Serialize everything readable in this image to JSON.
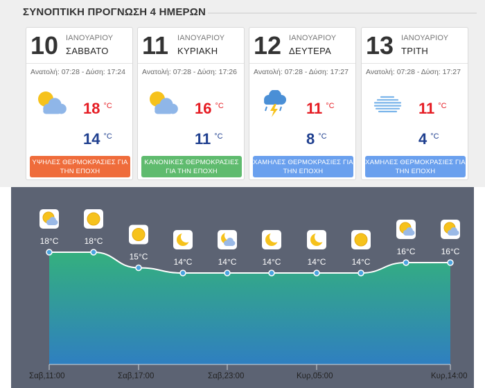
{
  "header": {
    "title": "ΣΥΝΟΠΤΙΚΗ ΠΡΟΓΝΩΣΗ 4 ΗΜΕΡΩΝ"
  },
  "cards": [
    {
      "day": "10",
      "month": "ΙΑΝΟΥΑΡΙΟΥ",
      "weekday": "ΣΑΒΒΑΤΟ",
      "sun": "Ανατολή: 07:28 - Δύση: 17:24",
      "icon": "partly-cloudy-sun-icon",
      "hi": "18",
      "lo": "14",
      "unit": "°C",
      "badge": "ΥΨΗΛΕΣ ΘΕΡΜΟΚΡΑΣΙΕΣ ΓΙΑ ΤΗΝ ΕΠΟΧΗ",
      "badge_color": "#ef6c3b"
    },
    {
      "day": "11",
      "month": "ΙΑΝΟΥΑΡΙΟΥ",
      "weekday": "ΚΥΡΙΑΚΗ",
      "sun": "Ανατολή: 07:28 - Δύση: 17:26",
      "icon": "partly-cloudy-sun-icon",
      "hi": "16",
      "lo": "11",
      "unit": "°C",
      "badge": "ΚΑΝΟΝΙΚΕΣ ΘΕΡΜΟΚΡΑΣΙΕΣ ΓΙΑ ΤΗΝ ΕΠΟΧΗ",
      "badge_color": "#5fbb6e"
    },
    {
      "day": "12",
      "month": "ΙΑΝΟΥΑΡΙΟΥ",
      "weekday": "ΔΕΥΤΕΡΑ",
      "sun": "Ανατολή: 07:28 - Δύση: 17:27",
      "icon": "thunderstorm-icon",
      "hi": "11",
      "lo": "8",
      "unit": "°C",
      "badge": "ΧΑΜΗΛΕΣ ΘΕΡΜΟΚΡΑΣΙΕΣ ΓΙΑ ΤΗΝ ΕΠΟΧΗ",
      "badge_color": "#6aa0ee"
    },
    {
      "day": "13",
      "month": "ΙΑΝΟΥΑΡΙΟΥ",
      "weekday": "ΤΡΙΤΗ",
      "sun": "Ανατολή: 07:28 - Δύση: 17:27",
      "icon": "fog-icon",
      "hi": "11",
      "lo": "4",
      "unit": "°C",
      "badge": "ΧΑΜΗΛΕΣ ΘΕΡΜΟΚΡΑΣΙΕΣ ΓΙΑ ΤΗΝ ΕΠΟΧΗ",
      "badge_color": "#6aa0ee"
    }
  ],
  "hourly": {
    "points": [
      {
        "temp": "18°C",
        "icon": "sun-cloud-icon"
      },
      {
        "temp": "18°C",
        "icon": "sun-icon"
      },
      {
        "temp": "15°C",
        "icon": "sun-icon"
      },
      {
        "temp": "14°C",
        "icon": "moon-icon"
      },
      {
        "temp": "14°C",
        "icon": "moon-cloud-icon"
      },
      {
        "temp": "14°C",
        "icon": "moon-icon"
      },
      {
        "temp": "14°C",
        "icon": "moon-icon"
      },
      {
        "temp": "14°C",
        "icon": "sun-icon"
      },
      {
        "temp": "16°C",
        "icon": "sun-cloud-icon"
      },
      {
        "temp": "16°C",
        "icon": "sun-cloud-icon"
      }
    ],
    "values": [
      18,
      18,
      15,
      14,
      14,
      14,
      14,
      14,
      16,
      16
    ],
    "time_labels": [
      "Σαβ,11:00",
      "Σαβ,17:00",
      "Σαβ,23:00",
      "Κυρ,05:00",
      "Κυρ,14:00"
    ],
    "colors": {
      "panel": "#5c6373",
      "fill_top": "#34b07e",
      "fill_bottom": "#2f7fc0",
      "line": "#ffffff"
    }
  }
}
